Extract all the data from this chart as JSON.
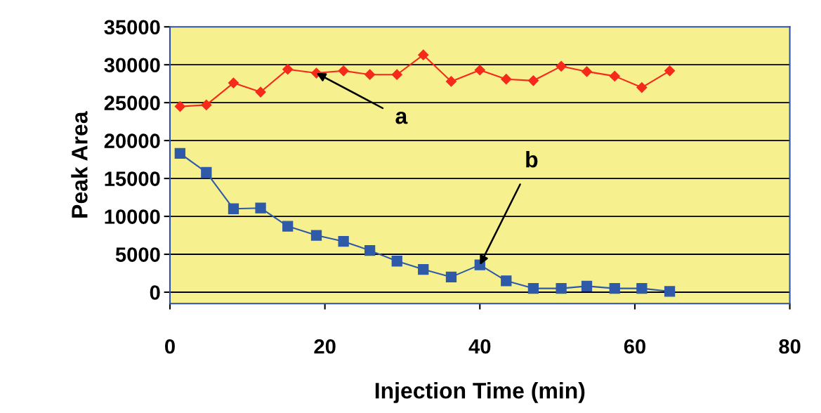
{
  "chart_data": {
    "type": "line",
    "xlabel": "Injection Time (min)",
    "ylabel": "Peak Area",
    "xlim": [
      0,
      80
    ],
    "xticks": [
      0,
      20,
      40,
      60,
      80
    ],
    "ylim": [
      -1500,
      35000
    ],
    "yticks": [
      0,
      5000,
      10000,
      15000,
      20000,
      25000,
      30000,
      35000
    ],
    "grid": "y",
    "series": [
      {
        "color": "#f52a1a",
        "marker": "diamond",
        "x": [
          1.3,
          4.7,
          8.2,
          11.7,
          15.2,
          18.9,
          22.4,
          25.8,
          29.3,
          32.7,
          36.3,
          40.0,
          43.4,
          46.9,
          50.5,
          53.8,
          57.4,
          60.9,
          64.5
        ],
        "values": [
          24500,
          24700,
          27600,
          26400,
          29400,
          28900,
          29200,
          28700,
          28700,
          31300,
          27800,
          29300,
          28100,
          27900,
          29800,
          29100,
          28500,
          27000,
          29200
        ]
      },
      {
        "color": "#2e5aa8",
        "marker": "square",
        "x": [
          1.3,
          4.7,
          8.2,
          11.7,
          15.2,
          18.9,
          22.4,
          25.8,
          29.3,
          32.7,
          36.3,
          40.0,
          43.4,
          46.9,
          50.5,
          53.8,
          57.4,
          60.9,
          64.5
        ],
        "values": [
          18300,
          15800,
          11000,
          11100,
          8700,
          7500,
          6700,
          5500,
          4100,
          3000,
          2000,
          3600,
          1500,
          500,
          500,
          800,
          500,
          500,
          100
        ]
      }
    ],
    "annotations": [
      {
        "text": "a",
        "x": 18.9,
        "y": 28900
      },
      {
        "text": "b",
        "x": 40.0,
        "y": 3600
      }
    ]
  }
}
